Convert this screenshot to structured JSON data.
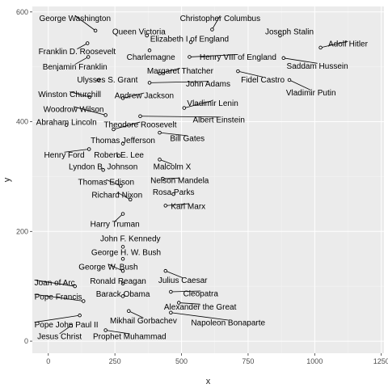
{
  "chart_data": {
    "type": "scatter",
    "title": "",
    "xlabel": "x",
    "ylabel": "y",
    "xlim": [
      -60,
      1260
    ],
    "ylim": [
      -22,
      610
    ],
    "xticks": [
      0,
      250,
      500,
      750,
      1000,
      1250
    ],
    "yticks": [
      0,
      200,
      400,
      600
    ],
    "grid": true,
    "legend": "none",
    "colors": {
      "panel": "#ebebeb",
      "grid_major": "#ffffff",
      "grid_minor": "#f5f5f5",
      "point_fill": "#ffffff",
      "point_stroke": "#000000",
      "text": "#000000",
      "tick": "#4d4d4d"
    },
    "points": [
      {
        "name": "Christopher Columbus",
        "x": 615,
        "y": 568,
        "lx": 645,
        "ly": 589
      },
      {
        "name": "George Washington",
        "x": 177,
        "y": 566,
        "lx": 100,
        "ly": 589
      },
      {
        "name": "Queen Victoria",
        "x": 370,
        "y": 557,
        "lx": 340,
        "ly": 564
      },
      {
        "name": "Joseph Stalin",
        "x": 870,
        "y": 557,
        "lx": 905,
        "ly": 564
      },
      {
        "name": "Elizabeth I of England",
        "x": 535,
        "y": 545,
        "lx": 530,
        "ly": 551
      },
      {
        "name": "Franklin D. Roosevelt",
        "x": 147,
        "y": 543,
        "lx": 108,
        "ly": 528
      },
      {
        "name": "Adolf Hitler",
        "x": 1022,
        "y": 535,
        "lx": 1125,
        "ly": 542
      },
      {
        "name": "Charlemagne",
        "x": 380,
        "y": 530,
        "lx": 385,
        "ly": 518
      },
      {
        "name": "Henry VIII of England",
        "x": 530,
        "y": 518,
        "lx": 712,
        "ly": 518
      },
      {
        "name": "Saddam Hussein",
        "x": 883,
        "y": 516,
        "lx": 1010,
        "ly": 502
      },
      {
        "name": "Benjamin Franklin",
        "x": 150,
        "y": 518,
        "lx": 100,
        "ly": 500
      },
      {
        "name": "Margaret Thatcher",
        "x": 418,
        "y": 488,
        "lx": 495,
        "ly": 493
      },
      {
        "name": "Fidel Castro",
        "x": 712,
        "y": 492,
        "lx": 805,
        "ly": 477
      },
      {
        "name": "Ulysses S. Grant",
        "x": 188,
        "y": 476,
        "lx": 222,
        "ly": 477
      },
      {
        "name": "John Adams",
        "x": 380,
        "y": 471,
        "lx": 600,
        "ly": 469
      },
      {
        "name": "Vladimir Putin",
        "x": 905,
        "y": 476,
        "lx": 986,
        "ly": 453
      },
      {
        "name": "Winston Churchill",
        "x": 155,
        "y": 445,
        "lx": 80,
        "ly": 450
      },
      {
        "name": "Andrew Jackson",
        "x": 280,
        "y": 443,
        "lx": 360,
        "ly": 448
      },
      {
        "name": "Vladimir Lenin",
        "x": 510,
        "y": 425,
        "lx": 617,
        "ly": 434
      },
      {
        "name": "Woodrow Wilson",
        "x": 215,
        "y": 412,
        "lx": 95,
        "ly": 423
      },
      {
        "name": "Albert Einstein",
        "x": 345,
        "y": 410,
        "lx": 640,
        "ly": 404
      },
      {
        "name": "Abraham Lincoln",
        "x": 68,
        "y": 394,
        "lx": 68,
        "ly": 399
      },
      {
        "name": "Theodore Roosevelt",
        "x": 245,
        "y": 386,
        "lx": 345,
        "ly": 395
      },
      {
        "name": "Bill Gates",
        "x": 418,
        "y": 380,
        "lx": 522,
        "ly": 370
      },
      {
        "name": "Thomas Jefferson",
        "x": 280,
        "y": 360,
        "lx": 280,
        "ly": 366
      },
      {
        "name": "Henry Ford",
        "x": 153,
        "y": 350,
        "lx": 60,
        "ly": 340
      },
      {
        "name": "Robert E. Lee",
        "x": 265,
        "y": 338,
        "lx": 265,
        "ly": 340
      },
      {
        "name": "Malcolm X",
        "x": 418,
        "y": 331,
        "lx": 465,
        "ly": 318
      },
      {
        "name": "Lyndon B. Johnson",
        "x": 206,
        "y": 312,
        "lx": 206,
        "ly": 318
      },
      {
        "name": "Nelson Mandela",
        "x": 430,
        "y": 296,
        "lx": 493,
        "ly": 293
      },
      {
        "name": "Thomas Edison",
        "x": 272,
        "y": 283,
        "lx": 217,
        "ly": 290
      },
      {
        "name": "Rosa Parks",
        "x": 470,
        "y": 268,
        "lx": 470,
        "ly": 272
      },
      {
        "name": "Richard Nixon",
        "x": 308,
        "y": 258,
        "lx": 258,
        "ly": 267
      },
      {
        "name": "Karl Marx",
        "x": 440,
        "y": 247,
        "lx": 525,
        "ly": 246
      },
      {
        "name": "Harry Truman",
        "x": 280,
        "y": 232,
        "lx": 250,
        "ly": 214
      },
      {
        "name": "John F. Kennedy",
        "x": 280,
        "y": 172,
        "lx": 308,
        "ly": 187
      },
      {
        "name": "George H. W. Bush",
        "x": 280,
        "y": 150,
        "lx": 292,
        "ly": 162
      },
      {
        "name": "George W. Bush",
        "x": 280,
        "y": 128,
        "lx": 225,
        "ly": 136
      },
      {
        "name": "Julius Caesar",
        "x": 440,
        "y": 128,
        "lx": 505,
        "ly": 111
      },
      {
        "name": "Ronald Reagan",
        "x": 280,
        "y": 105,
        "lx": 262,
        "ly": 110
      },
      {
        "name": "Joan of Arc",
        "x": 100,
        "y": 100,
        "lx": -52,
        "ly": 107,
        "anchor": "start"
      },
      {
        "name": "Cleopatra",
        "x": 460,
        "y": 90,
        "lx": 572,
        "ly": 87
      },
      {
        "name": "Barack Obama",
        "x": 280,
        "y": 82,
        "lx": 280,
        "ly": 86
      },
      {
        "name": "Pope Francis",
        "x": 132,
        "y": 73,
        "lx": -52,
        "ly": 81,
        "anchor": "start"
      },
      {
        "name": "Alexander the Great",
        "x": 490,
        "y": 70,
        "lx": 570,
        "ly": 63
      },
      {
        "name": "Mikhail Gorbachev",
        "x": 302,
        "y": 55,
        "lx": 357,
        "ly": 38
      },
      {
        "name": "Napoleon Bonaparte",
        "x": 460,
        "y": 52,
        "lx": 675,
        "ly": 34
      },
      {
        "name": "Pope John Paul II",
        "x": 118,
        "y": 47,
        "lx": -52,
        "ly": 30,
        "anchor": "start"
      },
      {
        "name": "Jesus Christ",
        "x": 85,
        "y": 28,
        "lx": 42,
        "ly": 9
      },
      {
        "name": "Prophet Muhammad",
        "x": 215,
        "y": 20,
        "lx": 305,
        "ly": 9
      }
    ]
  }
}
